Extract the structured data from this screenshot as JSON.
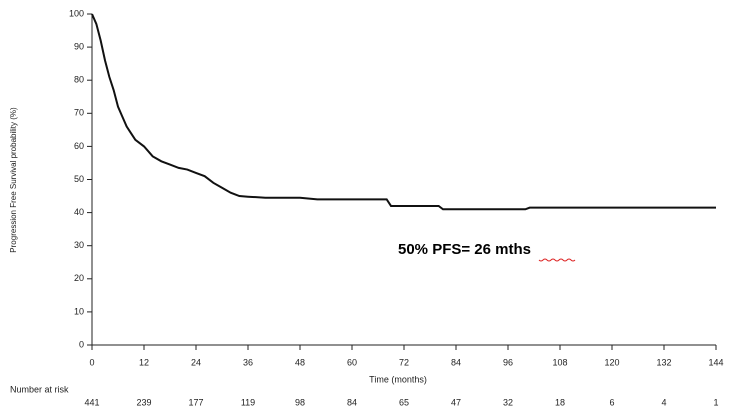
{
  "chart_data": {
    "type": "line",
    "y_label": "Progression Free Survival probability (%)",
    "x_label": "Time (months)",
    "annotation": "50% PFS= 26 mths",
    "xlim": [
      0,
      144
    ],
    "ylim": [
      0,
      100
    ],
    "xticks": [
      0,
      12,
      24,
      36,
      48,
      60,
      72,
      84,
      96,
      108,
      120,
      132,
      144
    ],
    "yticks": [
      0,
      10,
      20,
      30,
      40,
      50,
      60,
      70,
      80,
      90,
      100
    ],
    "x": [
      0,
      1,
      2,
      3,
      4,
      5,
      6,
      7,
      8,
      9,
      10,
      12,
      14,
      16,
      18,
      20,
      22,
      24,
      26,
      28,
      30,
      32,
      34,
      36,
      40,
      48,
      52,
      60,
      68,
      69,
      80,
      81,
      100,
      101,
      144
    ],
    "series": [
      {
        "color": "#111111",
        "values": [
          100,
          97,
          92,
          86,
          81,
          77,
          72,
          69,
          66,
          64,
          62,
          60,
          57,
          55.5,
          54.5,
          53.5,
          53,
          52,
          51,
          49,
          47.5,
          46,
          45,
          44.8,
          44.5,
          44.5,
          44,
          44,
          44,
          42,
          42,
          41,
          41,
          41.5,
          41.5
        ]
      }
    ],
    "at_risk": {
      "label": "Number at risk",
      "values": [
        441,
        239,
        177,
        119,
        98,
        84,
        65,
        47,
        32,
        18,
        6,
        4,
        1
      ]
    }
  }
}
